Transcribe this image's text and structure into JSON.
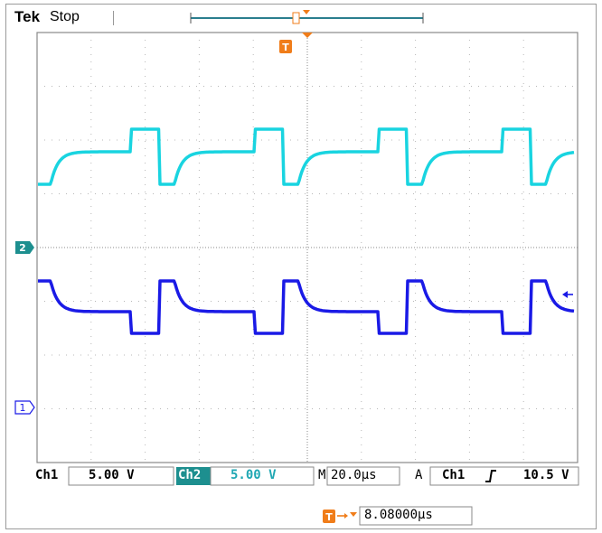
{
  "header": {
    "brand": "Tek",
    "status": "Stop"
  },
  "markers": {
    "trigger_glyph": "T",
    "ch2_label": "2",
    "ch1_label": "1"
  },
  "channels": [
    {
      "name": "Ch1",
      "scale": "5.00 V",
      "color": "#1a1ae6"
    },
    {
      "name": "Ch2",
      "scale": "5.00 V",
      "color": "#19d4e0"
    }
  ],
  "timebase": {
    "prefix": "M",
    "value": "20.0µs"
  },
  "trigger": {
    "mode": "A",
    "source": "Ch1",
    "slope_icon": "rising-edge-icon",
    "level": "10.5 V"
  },
  "trigger_position": {
    "value": "8.08000µs"
  },
  "colors": {
    "trigger_orange": "#f07d1a",
    "ch2_badge": "#1d8f8f",
    "grid": "#b0b0b0"
  }
}
